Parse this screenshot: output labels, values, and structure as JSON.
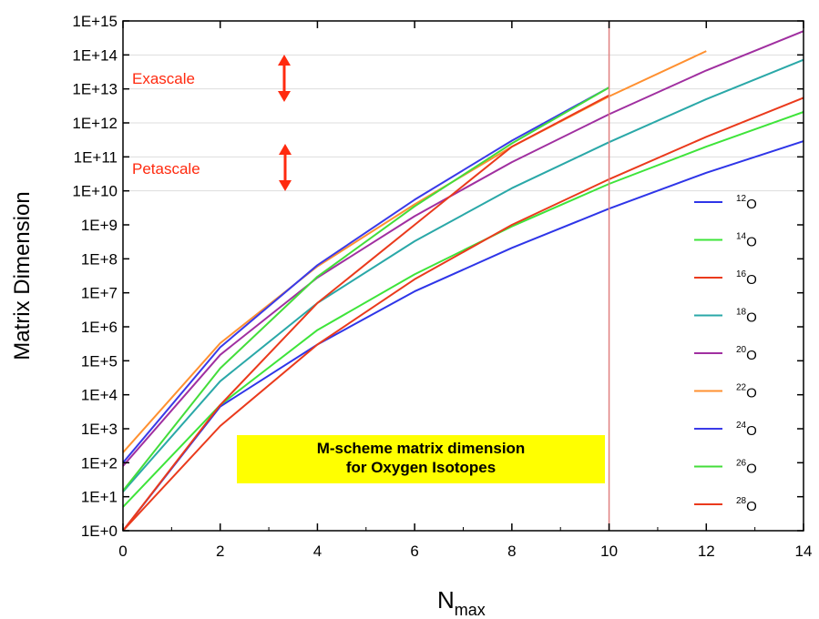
{
  "chart_data": {
    "type": "line",
    "title": "",
    "xlabel": "N",
    "xlabel_sub": "max",
    "ylabel": "Matrix Dimension",
    "xlim": [
      0,
      14
    ],
    "ylim_log10": [
      0,
      15
    ],
    "y_scale": "log",
    "x_ticks": [
      "0",
      "2",
      "4",
      "6",
      "8",
      "10",
      "12",
      "14"
    ],
    "y_ticks": [
      "1E+0",
      "1E+1",
      "1E+2",
      "1E+3",
      "1E+4",
      "1E+5",
      "1E+6",
      "1E+7",
      "1E+8",
      "1E+9",
      "1E+10",
      "1E+11",
      "1E+12",
      "1E+13",
      "1E+14",
      "1E+15"
    ],
    "grid": "horizontal lines at 1E+10, 1E+11, 1E+12, 1E+13, 1E+14",
    "vertical_marker_x": 10,
    "legend_position": "right",
    "annotations": {
      "exascale": "Exascale",
      "petascale": "Petascale",
      "box_line1": "M-scheme matrix dimension",
      "box_line2": "for Oxygen Isotopes"
    },
    "colors": {
      "annotation_red": "#ff2a0f",
      "box_yellow": "#ffff00",
      "marker_line": "#e08080",
      "grid": "#dddddd"
    },
    "series": [
      {
        "name": "12",
        "element": "O",
        "color": "#2e35e8",
        "x": [
          0,
          2,
          4,
          6,
          8,
          10,
          12,
          14
        ],
        "y": [
          1,
          4500,
          300000,
          11000000,
          210000000,
          3000000000,
          34000000000,
          290000000000
        ]
      },
      {
        "name": "14",
        "element": "O",
        "color": "#3ee43a",
        "x": [
          0,
          2,
          4,
          6,
          8,
          10,
          12,
          14
        ],
        "y": [
          5,
          5000,
          800000,
          35000000,
          900000000,
          16000000000,
          200000000000,
          2100000000000
        ]
      },
      {
        "name": "16",
        "element": "O",
        "color": "#ea3a1c",
        "x": [
          0,
          2,
          4,
          6,
          8,
          10,
          12,
          14
        ],
        "y": [
          1,
          1200,
          300000,
          25000000,
          1000000000,
          22000000000,
          390000000000,
          5500000000000
        ]
      },
      {
        "name": "18",
        "element": "O",
        "color": "#2aa8a8",
        "x": [
          0,
          2,
          4,
          6,
          8,
          10,
          12,
          14
        ],
        "y": [
          14,
          25000,
          5000000,
          330000000,
          12000000000,
          270000000000,
          5000000000000,
          72000000000000
        ]
      },
      {
        "name": "20",
        "element": "O",
        "color": "#a02fa0",
        "x": [
          0,
          2,
          4,
          6,
          8,
          10,
          12,
          14
        ],
        "y": [
          80,
          150000,
          28000000,
          1800000000,
          70000000000,
          1800000000000,
          35000000000000,
          500000000000000
        ]
      },
      {
        "name": "22",
        "element": "O",
        "color": "#ff9030",
        "x": [
          0,
          2,
          4,
          6,
          8,
          10,
          12
        ],
        "y": [
          200,
          330000,
          60000000,
          4000000000,
          200000000000,
          6000000000000,
          130000000000000
        ]
      },
      {
        "name": "24",
        "element": "O",
        "color": "#3a3ae8",
        "x": [
          0,
          2,
          4,
          6,
          8,
          10
        ],
        "y": [
          100,
          250000,
          65000000,
          5500000000,
          300000000000,
          11000000000000
        ]
      },
      {
        "name": "26",
        "element": "O",
        "color": "#43dd3a",
        "x": [
          0,
          2,
          4,
          6,
          8,
          10
        ],
        "y": [
          15,
          60000,
          30000000,
          3500000000,
          250000000000,
          11000000000000
        ]
      },
      {
        "name": "28",
        "element": "O",
        "color": "#ea3a1c",
        "x": [
          0,
          2,
          4,
          6,
          8,
          10
        ],
        "y": [
          1,
          5000,
          5000000,
          1000000000,
          200000000000,
          6500000000000
        ]
      }
    ]
  }
}
